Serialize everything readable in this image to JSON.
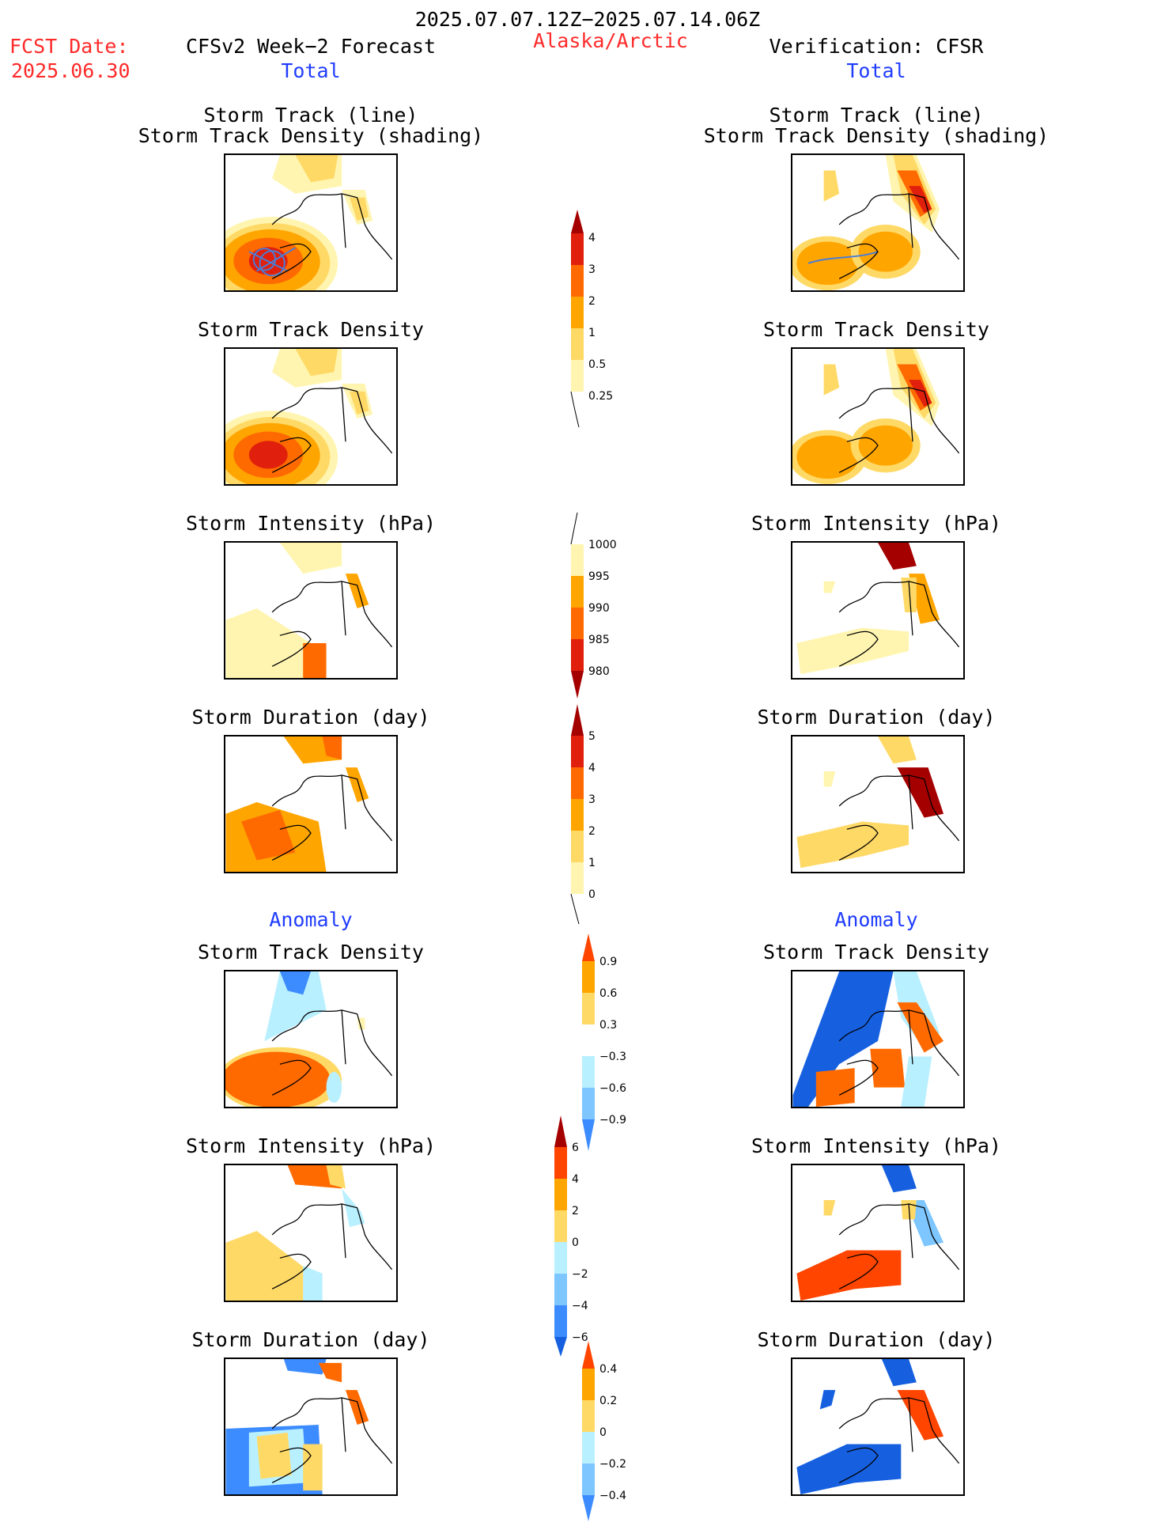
{
  "header": {
    "period": "2025.07.07.12Z−2025.07.14.06Z",
    "fcst_date_label": "FCST Date:",
    "fcst_date_value": "2025.06.30",
    "forecast_label": "CFSv2 Week−2 Forecast",
    "region": "Alaska/Arctic",
    "verification_label": "Verification: CFSR"
  },
  "sections": {
    "total_label": "Total",
    "anomaly_label": "Anomaly"
  },
  "panel_titles": {
    "track_line": "Storm Track (line)",
    "track_density_shading": "Storm Track Density (shading)",
    "track_density": "Storm Track Density",
    "intensity": "Storm Intensity (hPa)",
    "duration": "Storm Duration (day)"
  },
  "colorbars": {
    "density_total": [
      "4",
      "3",
      "2",
      "1",
      "0.5",
      "0.25"
    ],
    "intensity_total": [
      "1000",
      "995",
      "990",
      "985",
      "980"
    ],
    "duration_total": [
      "5",
      "4",
      "3",
      "2",
      "1",
      "0"
    ],
    "density_anom": [
      "0.9",
      "0.6",
      "0.3",
      "−0.3",
      "−0.6",
      "−0.9"
    ],
    "intensity_anom": [
      "6",
      "4",
      "2",
      "0",
      "−2",
      "−4",
      "−6"
    ],
    "duration_anom": [
      "0.4",
      "0.2",
      "0",
      "−0.2",
      "−0.4"
    ]
  },
  "colors": {
    "title_red": "#ff2a2a",
    "label_blue": "#1f3cff",
    "warm": [
      "#fff5b0",
      "#ffd966",
      "#ffa500",
      "#ff6a00",
      "#e0200c",
      "#a50000"
    ],
    "cool": [
      "#b8f0ff",
      "#7dc6ff",
      "#3d8cff",
      "#1660e0"
    ]
  }
}
